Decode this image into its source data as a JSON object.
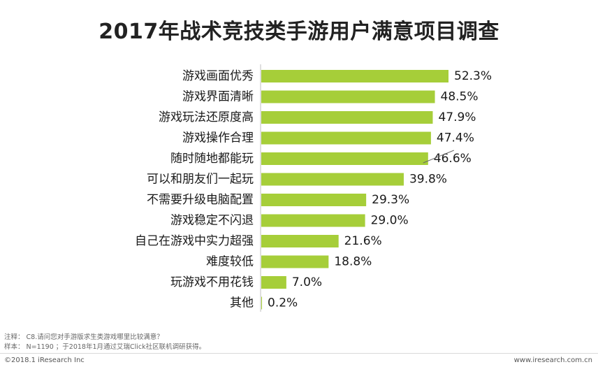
{
  "title": "2017年战术竞技类手游用户满意项目调查",
  "chart_data": {
    "type": "bar",
    "orientation": "horizontal",
    "title": "2017年战术竞技类手游用户满意项目调查",
    "categories": [
      "游戏画面优秀",
      "游戏界面清晰",
      "游戏玩法还原度高",
      "游戏操作合理",
      "随时随地都能玩",
      "可以和朋友们一起玩",
      "不需要升级电脑配置",
      "游戏稳定不闪退",
      "自己在游戏中实力超强",
      "难度较低",
      "玩游戏不用花钱",
      "其他"
    ],
    "values": [
      52.3,
      48.5,
      47.9,
      47.4,
      46.6,
      39.8,
      29.3,
      29.0,
      21.6,
      18.8,
      7.0,
      0.2
    ],
    "value_labels": [
      "52.3%",
      "48.5%",
      "47.9%",
      "47.4%",
      "46.6%",
      "39.8%",
      "29.3%",
      "29.0%",
      "21.6%",
      "18.8%",
      "7.0%",
      "0.2%"
    ],
    "unit": "%",
    "xlim": [
      0,
      60
    ],
    "bar_color": "#a6ce39",
    "grid": false,
    "xlabel": "",
    "ylabel": ""
  },
  "footer": {
    "note": "注释： C8.请问您对手游版求生类游戏哪里比较满意？",
    "sample": "样本： N=1190 ；于2018年1月通过艾瑞Click社区联机调研获得。",
    "copyright": "©2018.1 iResearch Inc",
    "website": "www.iresearch.com.cn"
  }
}
